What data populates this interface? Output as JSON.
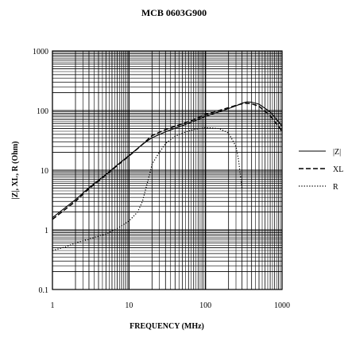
{
  "chart_data": {
    "type": "line",
    "title": "MCB 0603G900",
    "xlabel": "FREQUENCY (MHz)",
    "ylabel": "|Z|, XL, R (Ohm)",
    "x_scale": "log",
    "y_scale": "log",
    "xlim": [
      1,
      1000
    ],
    "ylim": [
      0.1,
      1000
    ],
    "grid": true,
    "legend_position": "right",
    "x_ticks": [
      "1",
      "10",
      "100",
      "1000"
    ],
    "y_ticks": [
      "0.1",
      "1",
      "10",
      "100",
      "1000"
    ],
    "series": [
      {
        "name": "|Z|",
        "style": "solid",
        "x": [
          1,
          2,
          3,
          5,
          7,
          10,
          15,
          20,
          30,
          50,
          70,
          100,
          150,
          200,
          250,
          300,
          350,
          400,
          500,
          700,
          1000
        ],
        "y": [
          1.6,
          3.2,
          5.1,
          8.5,
          12.2,
          17.6,
          27,
          35,
          44,
          56,
          66,
          80,
          95,
          108,
          120,
          133,
          140,
          138,
          128,
          95,
          55
        ]
      },
      {
        "name": "XL",
        "style": "dashed",
        "x": [
          1,
          2,
          3,
          5,
          7,
          10,
          15,
          20,
          30,
          50,
          70,
          100,
          150,
          200,
          250,
          300,
          350,
          400,
          500,
          700,
          1000
        ],
        "y": [
          1.5,
          3.0,
          4.9,
          8.3,
          11.9,
          17.2,
          27,
          38,
          48,
          60,
          70,
          86,
          100,
          112,
          122,
          130,
          133,
          130,
          118,
          82,
          45
        ]
      },
      {
        "name": "R",
        "style": "dotted",
        "x": [
          1,
          1.5,
          2,
          3,
          5,
          7,
          10,
          13,
          15,
          17,
          19,
          20,
          23,
          30,
          40,
          50,
          70,
          100,
          150,
          200,
          250,
          270,
          290,
          300
        ],
        "y": [
          0.45,
          0.52,
          0.6,
          0.7,
          0.85,
          1.05,
          1.4,
          2.0,
          3.0,
          5.5,
          9.5,
          12.5,
          17,
          28,
          37,
          42,
          48,
          52,
          50,
          42,
          25,
          15,
          7,
          5
        ]
      }
    ]
  }
}
